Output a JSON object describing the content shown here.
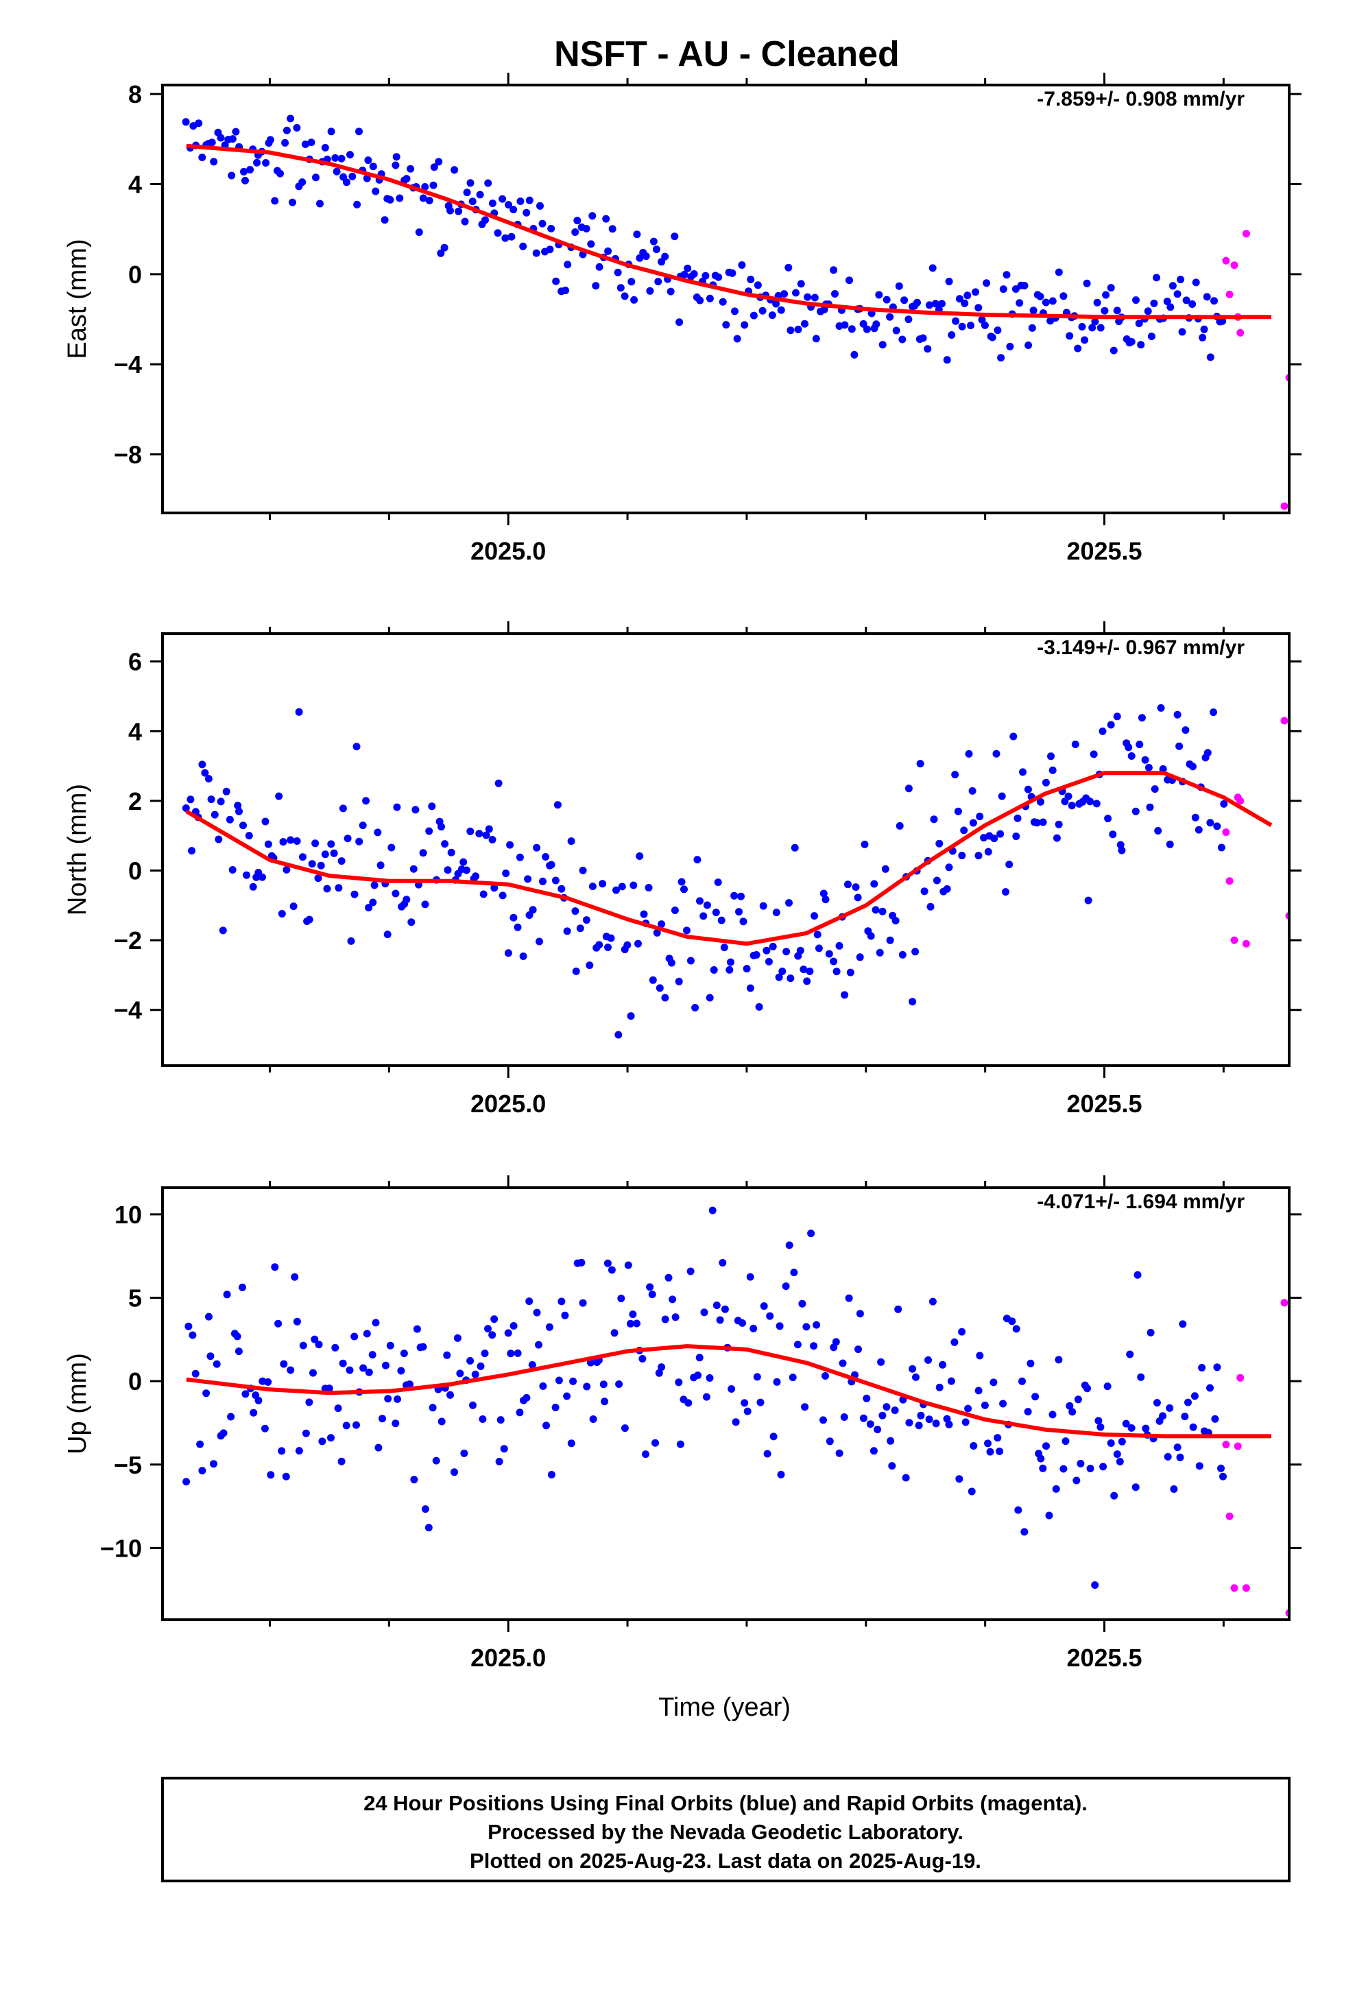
{
  "title": "NSFT  - AU - Cleaned",
  "footer": {
    "lines": [
      "24 Hour Positions Using Final Orbits (blue) and Rapid Orbits (magenta).",
      "Processed by the Nevada Geodetic Laboratory.",
      "Plotted on 2025-Aug-23. Last data on 2025-Aug-19."
    ]
  },
  "colors": {
    "final": "#0000ff",
    "rapid": "#ff00ff",
    "model": "#ff0000"
  },
  "chart_data": [
    {
      "type": "scatter",
      "name": "east",
      "ylabel": "East (mm)",
      "xlabel": "",
      "rate_label": "-7.859+/- 0.908 mm/yr",
      "xlim": [
        2024.71,
        2025.655
      ],
      "ylim": [
        -10.6,
        8.4
      ],
      "xticks": [
        2025.0,
        2025.5
      ],
      "xtick_labels": [
        "2025.0",
        "2025.5"
      ],
      "xminor": [
        2024.8,
        2024.9,
        2025.1,
        2025.2,
        2025.3,
        2025.4,
        2025.6
      ],
      "yticks": [
        -8,
        -4,
        0,
        4,
        8
      ],
      "ytick_labels": [
        "−8",
        "−4",
        "0",
        "4",
        "8"
      ],
      "model_line": {
        "x": [
          2024.73,
          2024.8,
          2024.85,
          2024.9,
          2024.95,
          2025.0,
          2025.05,
          2025.1,
          2025.15,
          2025.2,
          2025.25,
          2025.3,
          2025.35,
          2025.4,
          2025.45,
          2025.5,
          2025.55,
          2025.6,
          2025.64
        ],
        "y": [
          5.7,
          5.4,
          4.9,
          4.2,
          3.3,
          2.3,
          1.3,
          0.4,
          -0.3,
          -0.9,
          -1.3,
          -1.55,
          -1.7,
          -1.8,
          -1.85,
          -1.9,
          -1.9,
          -1.9,
          -1.9
        ]
      },
      "scatter_amp": 1.0,
      "final_range": [
        2024.73,
        2025.6
      ],
      "final_count": 330,
      "rapid": {
        "x": [
          2025.602,
          2025.605,
          2025.609,
          2025.612,
          2025.614,
          2025.619,
          2025.651,
          2025.655
        ],
        "y": [
          0.6,
          -0.9,
          0.4,
          -1.9,
          -2.6,
          1.8,
          -10.3,
          -4.6
        ]
      }
    },
    {
      "type": "scatter",
      "name": "north",
      "ylabel": "North (mm)",
      "xlabel": "",
      "rate_label": "-3.149+/- 0.967 mm/yr",
      "xlim": [
        2024.71,
        2025.655
      ],
      "ylim": [
        -5.6,
        6.8
      ],
      "xticks": [
        2025.0,
        2025.5
      ],
      "xtick_labels": [
        "2025.0",
        "2025.5"
      ],
      "xminor": [
        2024.8,
        2024.9,
        2025.1,
        2025.2,
        2025.3,
        2025.4,
        2025.6
      ],
      "yticks": [
        -4,
        -2,
        0,
        2,
        4,
        6
      ],
      "ytick_labels": [
        "−4",
        "−2",
        "0",
        "2",
        "4",
        "6"
      ],
      "model_line": {
        "x": [
          2024.73,
          2024.8,
          2024.85,
          2024.9,
          2024.95,
          2025.0,
          2025.05,
          2025.1,
          2025.15,
          2025.2,
          2025.25,
          2025.3,
          2025.35,
          2025.4,
          2025.45,
          2025.5,
          2025.55,
          2025.6,
          2025.64
        ],
        "y": [
          1.7,
          0.3,
          -0.15,
          -0.3,
          -0.3,
          -0.4,
          -0.8,
          -1.4,
          -1.9,
          -2.1,
          -1.8,
          -1.0,
          0.2,
          1.3,
          2.2,
          2.8,
          2.8,
          2.1,
          1.3
        ]
      },
      "scatter_amp": 1.2,
      "final_range": [
        2024.73,
        2025.6
      ],
      "final_count": 330,
      "rapid": {
        "x": [
          2025.602,
          2025.605,
          2025.609,
          2025.612,
          2025.614,
          2025.619,
          2025.651,
          2025.655
        ],
        "y": [
          1.1,
          -0.3,
          -2.0,
          2.1,
          2.0,
          -2.1,
          4.3,
          -1.3
        ]
      }
    },
    {
      "type": "scatter",
      "name": "up",
      "ylabel": "Up (mm)",
      "xlabel": "Time (year)",
      "rate_label": "-4.071+/- 1.694 mm/yr",
      "xlim": [
        2024.71,
        2025.655
      ],
      "ylim": [
        -14.3,
        11.6
      ],
      "xticks": [
        2025.0,
        2025.5
      ],
      "xtick_labels": [
        "2025.0",
        "2025.5"
      ],
      "xminor": [
        2024.8,
        2024.9,
        2025.1,
        2025.2,
        2025.3,
        2025.4,
        2025.6
      ],
      "yticks": [
        -10,
        -5,
        0,
        5,
        10
      ],
      "ytick_labels": [
        "−10",
        "−5",
        "0",
        "5",
        "10"
      ],
      "model_line": {
        "x": [
          2024.73,
          2024.8,
          2024.85,
          2024.9,
          2024.95,
          2025.0,
          2025.05,
          2025.1,
          2025.15,
          2025.2,
          2025.25,
          2025.3,
          2025.35,
          2025.4,
          2025.45,
          2025.5,
          2025.55,
          2025.6,
          2025.64
        ],
        "y": [
          0.1,
          -0.5,
          -0.7,
          -0.6,
          -0.2,
          0.4,
          1.1,
          1.8,
          2.1,
          1.9,
          1.1,
          -0.1,
          -1.3,
          -2.3,
          -2.9,
          -3.2,
          -3.3,
          -3.3,
          -3.3
        ]
      },
      "scatter_amp": 3.3,
      "final_range": [
        2024.73,
        2025.6
      ],
      "final_count": 330,
      "rapid": {
        "x": [
          2025.602,
          2025.605,
          2025.609,
          2025.612,
          2025.614,
          2025.619,
          2025.651,
          2025.655
        ],
        "y": [
          -3.8,
          -8.1,
          -12.4,
          -3.9,
          0.2,
          -12.4,
          4.7,
          -13.9
        ]
      }
    }
  ]
}
